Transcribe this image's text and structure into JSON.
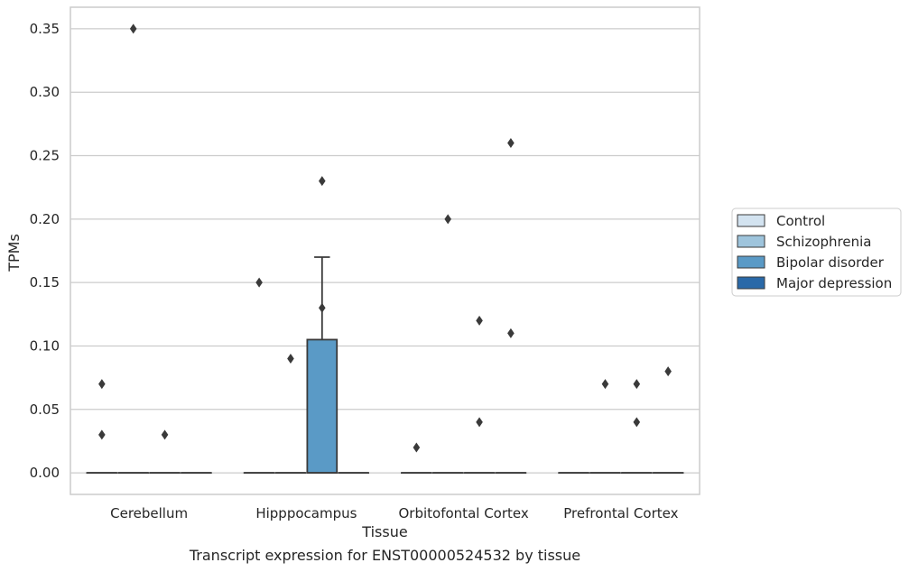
{
  "chart_data": {
    "type": "box",
    "xlabel": "Tissue",
    "ylabel": "TPMs",
    "caption": "Transcript expression for ENST00000524532 by tissue",
    "categories": [
      "Cerebellum",
      "Hipppocampus",
      "Orbitofontal Cortex",
      "Prefrontal Cortex"
    ],
    "ylim": [
      -0.017,
      0.367
    ],
    "yticks": [
      {
        "value": 0.0,
        "label": "0.00"
      },
      {
        "value": 0.05,
        "label": "0.05"
      },
      {
        "value": 0.1,
        "label": "0.10"
      },
      {
        "value": 0.15,
        "label": "0.15"
      },
      {
        "value": 0.2,
        "label": "0.20"
      },
      {
        "value": 0.25,
        "label": "0.25"
      },
      {
        "value": 0.3,
        "label": "0.30"
      },
      {
        "value": 0.35,
        "label": "0.35"
      }
    ],
    "grid": "horizontal",
    "legend_placement": "right",
    "series": [
      {
        "name": "Control",
        "color": "#d3e3f0",
        "boxes": [
          {
            "q1": 0,
            "median": 0,
            "q3": 0,
            "whisker_low": 0,
            "whisker_high": 0,
            "outliers": [
              0.03,
              0.07
            ]
          },
          {
            "q1": 0,
            "median": 0,
            "q3": 0,
            "whisker_low": 0,
            "whisker_high": 0,
            "outliers": [
              0.15
            ]
          },
          {
            "q1": 0,
            "median": 0,
            "q3": 0,
            "whisker_low": 0,
            "whisker_high": 0,
            "outliers": [
              0.02
            ]
          },
          {
            "q1": 0,
            "median": 0,
            "q3": 0,
            "whisker_low": 0,
            "whisker_high": 0,
            "outliers": []
          }
        ]
      },
      {
        "name": "Schizophrenia",
        "color": "#9ec4dc",
        "boxes": [
          {
            "q1": 0,
            "median": 0,
            "q3": 0,
            "whisker_low": 0,
            "whisker_high": 0,
            "outliers": [
              0.35
            ]
          },
          {
            "q1": 0,
            "median": 0,
            "q3": 0,
            "whisker_low": 0,
            "whisker_high": 0,
            "outliers": [
              0.09
            ]
          },
          {
            "q1": 0,
            "median": 0,
            "q3": 0,
            "whisker_low": 0,
            "whisker_high": 0,
            "outliers": [
              0.2
            ]
          },
          {
            "q1": 0,
            "median": 0,
            "q3": 0,
            "whisker_low": 0,
            "whisker_high": 0,
            "outliers": [
              0.07
            ]
          }
        ]
      },
      {
        "name": "Bipolar disorder",
        "color": "#5a9ac6",
        "boxes": [
          {
            "q1": 0,
            "median": 0,
            "q3": 0,
            "whisker_low": 0,
            "whisker_high": 0,
            "outliers": [
              0.03
            ]
          },
          {
            "q1": 0,
            "median": 0,
            "q3": 0.105,
            "whisker_low": 0,
            "whisker_high": 0.17,
            "outliers": [
              0.23,
              0.13
            ]
          },
          {
            "q1": 0,
            "median": 0,
            "q3": 0,
            "whisker_low": 0,
            "whisker_high": 0,
            "outliers": [
              0.12,
              0.04
            ]
          },
          {
            "q1": 0,
            "median": 0,
            "q3": 0,
            "whisker_low": 0,
            "whisker_high": 0,
            "outliers": [
              0.07,
              0.04
            ]
          }
        ]
      },
      {
        "name": "Major depression",
        "color": "#2a69a8",
        "boxes": [
          {
            "q1": 0,
            "median": 0,
            "q3": 0,
            "whisker_low": 0,
            "whisker_high": 0,
            "outliers": []
          },
          {
            "q1": 0,
            "median": 0,
            "q3": 0,
            "whisker_low": 0,
            "whisker_high": 0,
            "outliers": []
          },
          {
            "q1": 0,
            "median": 0,
            "q3": 0,
            "whisker_low": 0,
            "whisker_high": 0,
            "outliers": [
              0.26,
              0.11
            ]
          },
          {
            "q1": 0,
            "median": 0,
            "q3": 0,
            "whisker_low": 0,
            "whisker_high": 0,
            "outliers": [
              0.08
            ]
          }
        ]
      }
    ]
  }
}
